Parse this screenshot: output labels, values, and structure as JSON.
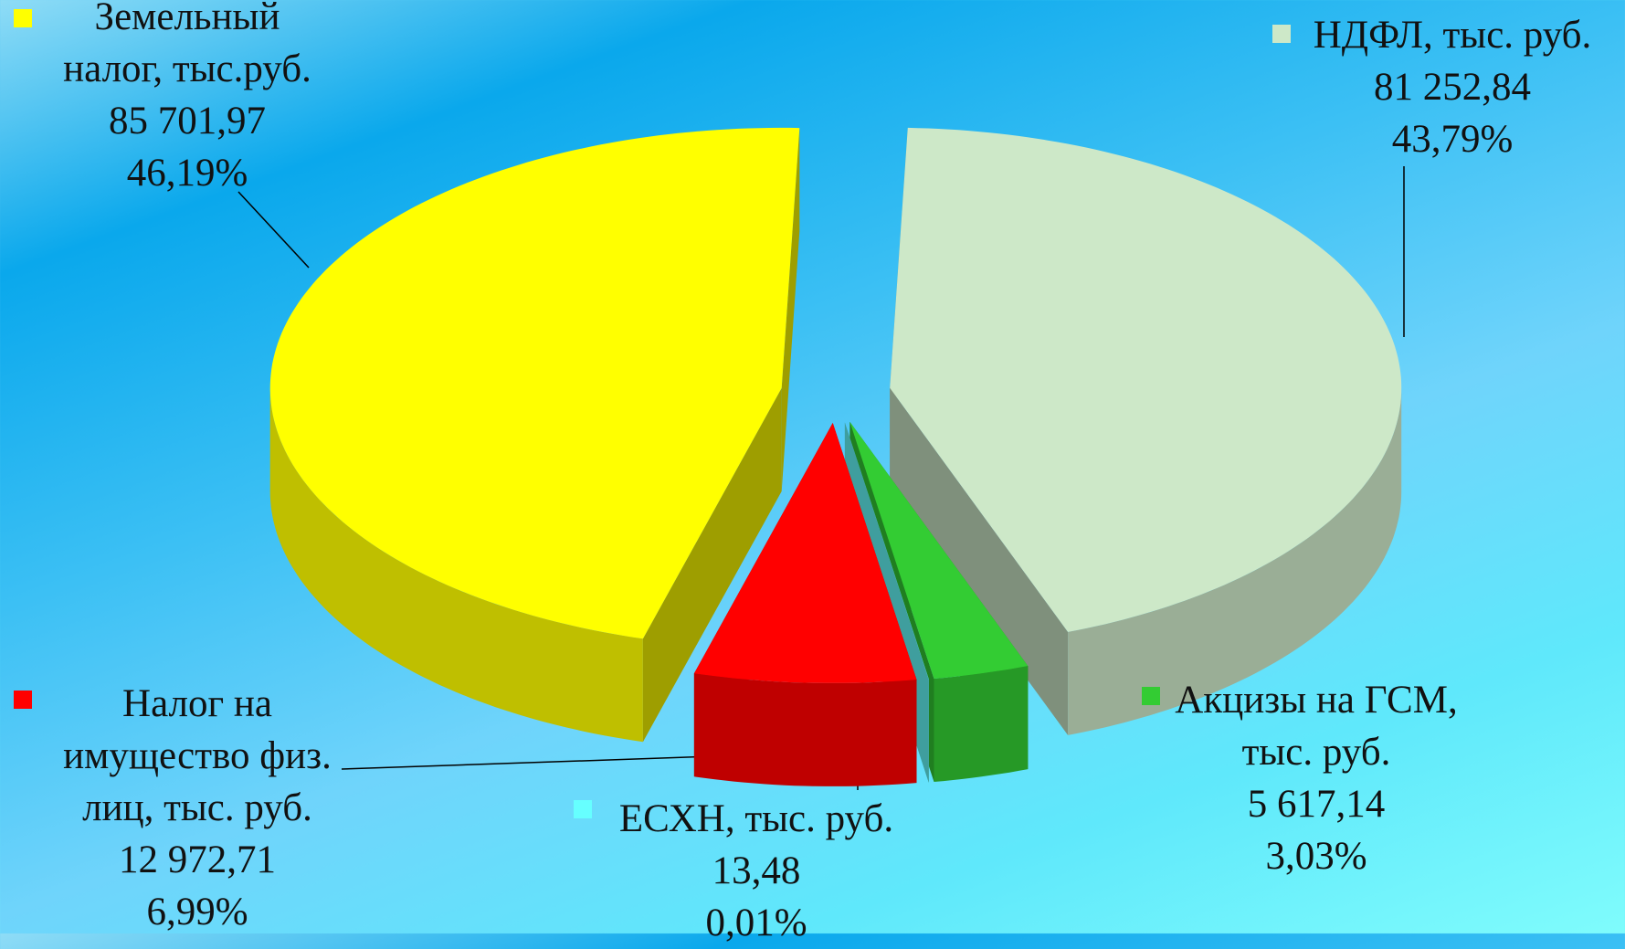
{
  "chart_data": {
    "type": "pie3d",
    "categories": [
      "НДФЛ, тыс. руб.",
      "Акцизы на ГСМ, тыс. руб.",
      "ЕСХН, тыс. руб.",
      "Налог на имущество физ. лиц, тыс. руб.",
      "Земельный налог, тыс.руб."
    ],
    "values": [
      81252.84,
      5617.14,
      13.48,
      12972.71,
      85701.97
    ],
    "value_labels": [
      "81 252,84",
      "5 617,14",
      "13,48",
      "12 972,71",
      "85 701,97"
    ],
    "percentages": [
      43.79,
      3.03,
      0.01,
      6.99,
      46.19
    ],
    "percentage_labels": [
      "43,79%",
      "3,03%",
      "0,01%",
      "6,99%",
      "46,19%"
    ],
    "colors": [
      "#cde8c8",
      "#33cc33",
      "#66ffff",
      "#ff0000",
      "#ffff00"
    ],
    "legend": "labels"
  }
}
